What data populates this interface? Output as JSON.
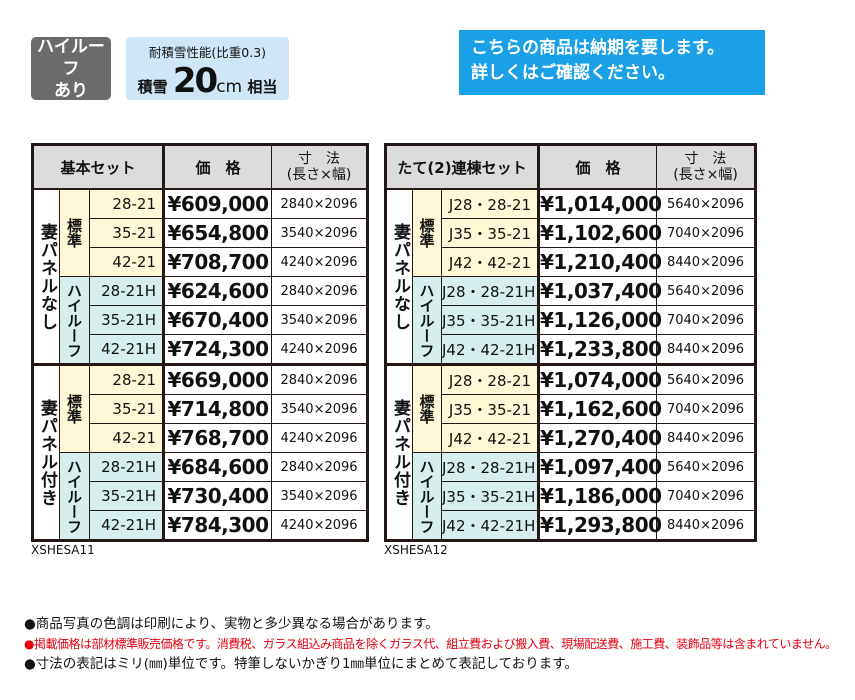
{
  "badges": {
    "highroof": [
      "ハイルーフ",
      "あり"
    ],
    "snow_title": "耐積雪性能(比重0.3)",
    "snow_prefix": "積雪",
    "snow_value": "20",
    "snow_unit": "cm",
    "snow_suffix": "相当"
  },
  "notice": [
    "こちらの商品は納期を要します。",
    "詳しくはご確認ください。"
  ],
  "colors": {
    "notice_bg": "#1aa0e6",
    "standard_bg": "#fff8d6",
    "highroof_bg": "#d6eeee",
    "header_bg": "#dcdcdc"
  },
  "tables": [
    {
      "code": "XSHESA11",
      "header": {
        "set": "基本セット",
        "price": "価　格",
        "size1": "寸　法",
        "size2": "(長さ×幅)"
      },
      "groups": [
        {
          "label": "妻パネルなし",
          "subs": [
            {
              "label": "標準",
              "type": "std",
              "rows": [
                [
                  "28-21",
                  "¥609,000",
                  "2840×2096"
                ],
                [
                  "35-21",
                  "¥654,800",
                  "3540×2096"
                ],
                [
                  "42-21",
                  "¥708,700",
                  "4240×2096"
                ]
              ]
            },
            {
              "label": "ハイルーフ",
              "type": "hi",
              "rows": [
                [
                  "28-21H",
                  "¥624,600",
                  "2840×2096"
                ],
                [
                  "35-21H",
                  "¥670,400",
                  "3540×2096"
                ],
                [
                  "42-21H",
                  "¥724,300",
                  "4240×2096"
                ]
              ]
            }
          ]
        },
        {
          "label": "妻パネル付き",
          "subs": [
            {
              "label": "標準",
              "type": "std",
              "rows": [
                [
                  "28-21",
                  "¥669,000",
                  "2840×2096"
                ],
                [
                  "35-21",
                  "¥714,800",
                  "3540×2096"
                ],
                [
                  "42-21",
                  "¥768,700",
                  "4240×2096"
                ]
              ]
            },
            {
              "label": "ハイルーフ",
              "type": "hi",
              "rows": [
                [
                  "28-21H",
                  "¥684,600",
                  "2840×2096"
                ],
                [
                  "35-21H",
                  "¥730,400",
                  "3540×2096"
                ],
                [
                  "42-21H",
                  "¥784,300",
                  "4240×2096"
                ]
              ]
            }
          ]
        }
      ]
    },
    {
      "code": "XSHESA12",
      "header": {
        "set": "たて(2)連棟セット",
        "price": "価　格",
        "size1": "寸　法",
        "size2": "(長さ×幅)"
      },
      "groups": [
        {
          "label": "妻パネルなし",
          "subs": [
            {
              "label": "標準",
              "type": "std",
              "rows": [
                [
                  "J28・28-21",
                  "¥1,014,000",
                  "5640×2096"
                ],
                [
                  "J35・35-21",
                  "¥1,102,600",
                  "7040×2096"
                ],
                [
                  "J42・42-21",
                  "¥1,210,400",
                  "8440×2096"
                ]
              ]
            },
            {
              "label": "ハイルーフ",
              "type": "hi",
              "rows": [
                [
                  "J28・28-21H",
                  "¥1,037,400",
                  "5640×2096"
                ],
                [
                  "J35・35-21H",
                  "¥1,126,000",
                  "7040×2096"
                ],
                [
                  "J42・42-21H",
                  "¥1,233,800",
                  "8440×2096"
                ]
              ]
            }
          ]
        },
        {
          "label": "妻パネル付き",
          "subs": [
            {
              "label": "標準",
              "type": "std",
              "rows": [
                [
                  "J28・28-21",
                  "¥1,074,000",
                  "5640×2096"
                ],
                [
                  "J35・35-21",
                  "¥1,162,600",
                  "7040×2096"
                ],
                [
                  "J42・42-21",
                  "¥1,270,400",
                  "8440×2096"
                ]
              ]
            },
            {
              "label": "ハイルーフ",
              "type": "hi",
              "rows": [
                [
                  "J28・28-21H",
                  "¥1,097,400",
                  "5640×2096"
                ],
                [
                  "J35・35-21H",
                  "¥1,186,000",
                  "7040×2096"
                ],
                [
                  "J42・42-21H",
                  "¥1,293,800",
                  "8440×2096"
                ]
              ]
            }
          ]
        }
      ]
    }
  ],
  "notes": [
    "●商品写真の色調は印刷により、実物と多少異なる場合があります。",
    "●掲載価格は部材標準販売価格です。消費税、ガラス組込み商品を除くガラス代、組立費および搬入費、現場配送費、施工費、装飾品等は含まれていません。",
    "●寸法の表記はミリ(㎜)単位です。特筆しないかぎり1㎜単位にまとめて表記しております。"
  ]
}
